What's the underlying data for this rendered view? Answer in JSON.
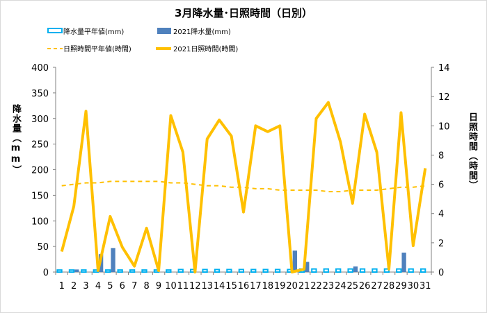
{
  "chart_data": {
    "type": "bar",
    "title": "3月降水量･日照時間（日別）",
    "ylabel": "降水量（mm）",
    "ylabel_right": "日照時間（時間）",
    "ylim": [
      0,
      400
    ],
    "ylim_right": [
      0,
      14
    ],
    "yticks": [
      "0",
      "50",
      "100",
      "150",
      "200",
      "250",
      "300",
      "350",
      "400"
    ],
    "yticks_right": [
      "0",
      "2",
      "4",
      "6",
      "8",
      "10",
      "12",
      "14"
    ],
    "categories": [
      "1",
      "2",
      "3",
      "4",
      "5",
      "6",
      "7",
      "8",
      "9",
      "10",
      "11",
      "12",
      "13",
      "14",
      "15",
      "16",
      "17",
      "18",
      "19",
      "20",
      "21",
      "22",
      "23",
      "24",
      "25",
      "26",
      "27",
      "28",
      "29",
      "30",
      "31"
    ],
    "legend": {
      "precip_normal": "降水量平年値(mm)",
      "precip_2021": "2021降水量(mm)",
      "sun_normal": "日照時間平年値(時間)",
      "sun_2021": "2021日照時間(時間)"
    },
    "series": [
      {
        "name": "降水量平年値(mm)",
        "axis": "left",
        "kind": "bar",
        "values": [
          4,
          4,
          4,
          4,
          4,
          4,
          4,
          4,
          4,
          4,
          5,
          5,
          5,
          5,
          5,
          5,
          5,
          5,
          5,
          5,
          6,
          6,
          6,
          6,
          6,
          6,
          6,
          6,
          6,
          6,
          6
        ]
      },
      {
        "name": "2021降水量(mm)",
        "axis": "left",
        "kind": "bar",
        "values": [
          0,
          5,
          0,
          35,
          47,
          0,
          0,
          0,
          0,
          0,
          0,
          0,
          0,
          0,
          0,
          0,
          0,
          0,
          0,
          42,
          20,
          0,
          0,
          0,
          11,
          0,
          0,
          0,
          38,
          0,
          0
        ]
      },
      {
        "name": "日照時間平年値(時間)",
        "axis": "right",
        "kind": "line-dashed",
        "values": [
          5.9,
          6.0,
          6.1,
          6.1,
          6.2,
          6.2,
          6.2,
          6.2,
          6.2,
          6.1,
          6.1,
          6.0,
          5.9,
          5.9,
          5.8,
          5.8,
          5.7,
          5.7,
          5.6,
          5.6,
          5.6,
          5.6,
          5.5,
          5.5,
          5.6,
          5.6,
          5.6,
          5.7,
          5.8,
          5.8,
          5.9
        ]
      },
      {
        "name": "2021日照時間(時間)",
        "axis": "right",
        "kind": "line",
        "values": [
          1.4,
          4.5,
          11.0,
          0.1,
          3.8,
          1.7,
          0.4,
          3.0,
          0.1,
          10.7,
          8.2,
          0.0,
          9.1,
          10.4,
          9.3,
          4.1,
          10.0,
          9.6,
          10.0,
          0.0,
          0.2,
          10.5,
          11.6,
          8.9,
          4.7,
          10.8,
          8.2,
          0.2,
          10.9,
          1.8,
          7.1
        ]
      }
    ],
    "colors": {
      "precip_normal": "#00b0f0",
      "precip_2021": "#4f81bd",
      "sun_normal": "#ffc000",
      "sun_2021": "#ffc000",
      "axis": "#808080",
      "grid": "#e0e0e0"
    },
    "grid": false,
    "legend_position": "top"
  }
}
